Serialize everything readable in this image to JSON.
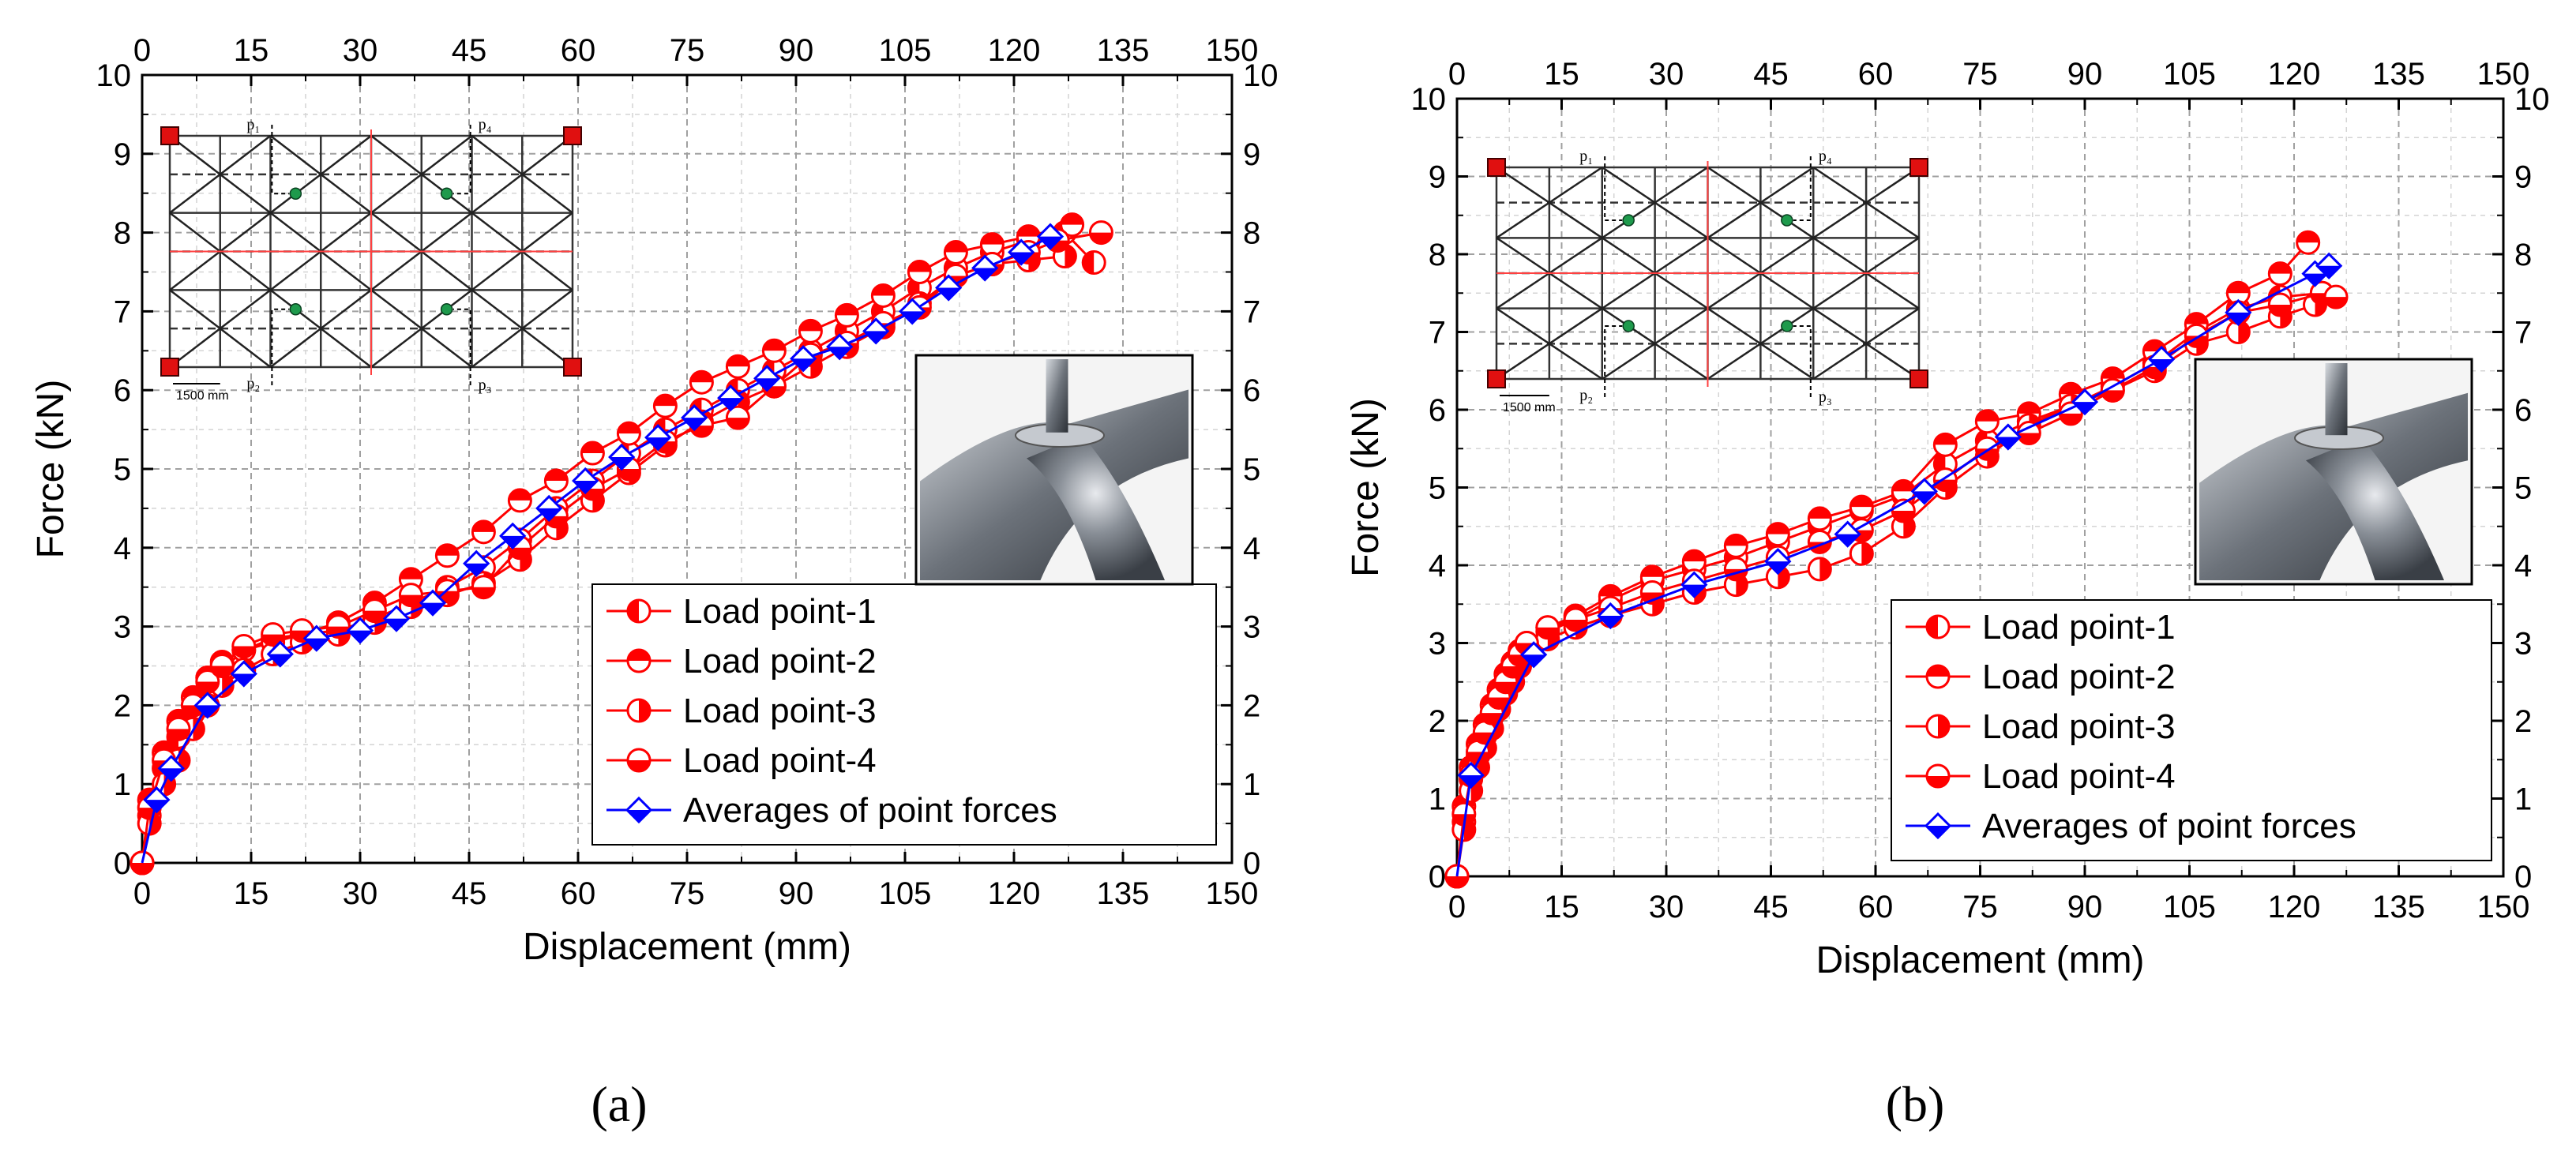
{
  "colors": {
    "series": "#ff0000",
    "average": "#0000ff",
    "grid": "#a0a0a0",
    "inset_node": "#1e9a4c"
  },
  "chart_data": [
    {
      "type": "line",
      "panel_label": "(a)",
      "xlabel": "Displacement (mm)",
      "ylabel": "Force (kN)",
      "xlim": [
        0,
        150
      ],
      "ylim": [
        0,
        10
      ],
      "xticks": [
        "0",
        "15",
        "30",
        "45",
        "60",
        "75",
        "90",
        "105",
        "120",
        "135",
        "150"
      ],
      "yticks": [
        "0",
        "1",
        "2",
        "3",
        "4",
        "5",
        "6",
        "7",
        "8",
        "9",
        "10"
      ],
      "inset_labels": {
        "p1": "p₁",
        "p2": "p₂",
        "p3": "p₃",
        "p4": "p₄",
        "scale": "1500 mm"
      },
      "series": [
        {
          "name": "Load point-1",
          "x": [
            0,
            1,
            3,
            5,
            7,
            9,
            11,
            14,
            18,
            22,
            27,
            32,
            37,
            42,
            47,
            52,
            57,
            62,
            67,
            72,
            77,
            82,
            87,
            92,
            97,
            102,
            107,
            112,
            117,
            122,
            127,
            131
          ],
          "y": [
            0,
            0.6,
            1.2,
            1.6,
            1.9,
            2.2,
            2.45,
            2.7,
            2.85,
            2.9,
            2.95,
            3.1,
            3.3,
            3.5,
            3.75,
            4.1,
            4.5,
            4.85,
            5.2,
            5.5,
            5.75,
            6.0,
            6.25,
            6.5,
            6.75,
            7.0,
            7.3,
            7.55,
            7.75,
            7.9,
            8.0,
            7.62
          ]
        },
        {
          "name": "Load point-2",
          "x": [
            0,
            1,
            3,
            5,
            7,
            9,
            11,
            14,
            18,
            22,
            27,
            32,
            37,
            42,
            47,
            52,
            57,
            62,
            67,
            72,
            77,
            82,
            87,
            92,
            97,
            102,
            107,
            112,
            117,
            122,
            128
          ],
          "y": [
            0,
            0.8,
            1.4,
            1.8,
            2.1,
            2.35,
            2.55,
            2.7,
            2.8,
            2.9,
            3.05,
            3.3,
            3.6,
            3.9,
            4.2,
            4.6,
            4.85,
            5.2,
            5.45,
            5.8,
            6.1,
            6.3,
            6.5,
            6.75,
            6.95,
            7.2,
            7.5,
            7.75,
            7.85,
            7.95,
            8.1
          ]
        },
        {
          "name": "Load point-3",
          "x": [
            0,
            1,
            3,
            5,
            7,
            9,
            11,
            14,
            18,
            22,
            27,
            32,
            37,
            42,
            47,
            52,
            57,
            62,
            67,
            72,
            77,
            82,
            87,
            92,
            97,
            102,
            107,
            112,
            117,
            122,
            127
          ],
          "y": [
            0,
            0.5,
            1.0,
            1.3,
            1.7,
            2.0,
            2.25,
            2.45,
            2.65,
            2.8,
            2.9,
            3.05,
            3.25,
            3.4,
            3.55,
            3.85,
            4.25,
            4.6,
            4.95,
            5.3,
            5.6,
            5.85,
            6.05,
            6.3,
            6.55,
            6.8,
            7.1,
            7.45,
            7.6,
            7.65,
            7.7
          ]
        },
        {
          "name": "Load point-4",
          "x": [
            0,
            1,
            3,
            5,
            7,
            9,
            11,
            14,
            18,
            22,
            27,
            32,
            37,
            42,
            47,
            52,
            57,
            62,
            67,
            72,
            77,
            82,
            87,
            92,
            97,
            102,
            107,
            112,
            117,
            122,
            126,
            132
          ],
          "y": [
            0,
            0.7,
            1.3,
            1.7,
            2.0,
            2.3,
            2.5,
            2.75,
            2.9,
            2.95,
            3.0,
            3.2,
            3.4,
            3.45,
            3.5,
            4.0,
            4.4,
            4.75,
            5.0,
            5.35,
            5.55,
            5.65,
            6.05,
            6.45,
            6.6,
            6.85,
            7.05,
            7.45,
            7.6,
            7.75,
            7.9,
            8.0
          ]
        },
        {
          "name": "Averages of point forces",
          "x": [
            0,
            2,
            4,
            9,
            14,
            19,
            24,
            30,
            35,
            40,
            46,
            51,
            56,
            61,
            66,
            71,
            76,
            81,
            86,
            91,
            96,
            101,
            106,
            111,
            116,
            121,
            125
          ],
          "y": [
            0,
            0.8,
            1.2,
            2.0,
            2.4,
            2.65,
            2.85,
            2.95,
            3.1,
            3.3,
            3.8,
            4.15,
            4.5,
            4.85,
            5.15,
            5.4,
            5.65,
            5.9,
            6.15,
            6.4,
            6.55,
            6.75,
            7.0,
            7.3,
            7.55,
            7.75,
            7.95
          ]
        }
      ]
    },
    {
      "type": "line",
      "panel_label": "(b)",
      "xlabel": "Displacement (mm)",
      "ylabel": "Force (kN)",
      "xlim": [
        0,
        150
      ],
      "ylim": [
        0,
        10
      ],
      "xticks": [
        "0",
        "15",
        "30",
        "45",
        "60",
        "75",
        "90",
        "105",
        "120",
        "135",
        "150"
      ],
      "yticks": [
        "0",
        "1",
        "2",
        "3",
        "4",
        "5",
        "6",
        "7",
        "8",
        "9",
        "10"
      ],
      "inset_labels": {
        "p1": "p₁",
        "p2": "p₂",
        "p3": "p₃",
        "p4": "p₄",
        "scale": "1500 mm"
      },
      "series": [
        {
          "name": "Load point-1",
          "x": [
            0,
            1,
            2,
            3,
            4,
            5,
            6,
            7,
            8,
            9,
            10,
            13,
            17,
            22,
            28,
            34,
            40,
            46,
            52,
            58,
            64,
            70,
            76,
            82,
            88,
            94,
            100,
            106,
            112,
            118,
            124
          ],
          "y": [
            0,
            0.7,
            1.25,
            1.55,
            1.8,
            2.05,
            2.3,
            2.5,
            2.65,
            2.8,
            2.95,
            3.15,
            3.3,
            3.55,
            3.8,
            3.95,
            4.1,
            4.3,
            4.5,
            4.7,
            4.9,
            5.3,
            5.6,
            5.85,
            6.05,
            6.3,
            6.6,
            7.0,
            7.3,
            7.45,
            7.5
          ]
        },
        {
          "name": "Load point-2",
          "x": [
            0,
            1,
            2,
            3,
            4,
            5,
            6,
            7,
            8,
            9,
            10,
            13,
            17,
            22,
            28,
            34,
            40,
            46,
            52,
            58,
            64,
            70,
            76,
            82,
            88,
            94,
            100,
            106,
            112,
            118,
            122
          ],
          "y": [
            0,
            0.9,
            1.4,
            1.7,
            1.95,
            2.2,
            2.4,
            2.6,
            2.75,
            2.9,
            3.0,
            3.2,
            3.35,
            3.6,
            3.85,
            4.05,
            4.25,
            4.4,
            4.6,
            4.75,
            4.95,
            5.55,
            5.85,
            5.95,
            6.2,
            6.4,
            6.75,
            7.1,
            7.5,
            7.75,
            8.15
          ]
        },
        {
          "name": "Load point-3",
          "x": [
            0,
            1,
            2,
            3,
            4,
            5,
            6,
            7,
            8,
            9,
            10,
            13,
            17,
            22,
            28,
            34,
            40,
            46,
            52,
            58,
            64,
            70,
            76,
            82,
            88,
            94,
            100,
            106,
            112,
            118,
            123
          ],
          "y": [
            0,
            0.6,
            1.1,
            1.4,
            1.65,
            1.9,
            2.15,
            2.35,
            2.5,
            2.7,
            2.85,
            3.05,
            3.2,
            3.35,
            3.5,
            3.65,
            3.75,
            3.85,
            3.95,
            4.15,
            4.5,
            5.0,
            5.4,
            5.8,
            6.05,
            6.25,
            6.5,
            6.85,
            7.0,
            7.2,
            7.35
          ]
        },
        {
          "name": "Load point-4",
          "x": [
            0,
            1,
            2,
            3,
            4,
            5,
            6,
            7,
            8,
            9,
            10,
            13,
            17,
            22,
            28,
            34,
            40,
            46,
            52,
            58,
            64,
            70,
            76,
            82,
            88,
            94,
            100,
            106,
            112,
            118,
            124,
            126
          ],
          "y": [
            0,
            0.8,
            1.3,
            1.6,
            1.85,
            2.1,
            2.3,
            2.5,
            2.7,
            2.85,
            3.0,
            3.2,
            3.3,
            3.45,
            3.65,
            3.8,
            3.95,
            4.1,
            4.3,
            4.45,
            4.7,
            5.1,
            5.5,
            5.7,
            5.95,
            6.25,
            6.55,
            6.95,
            7.25,
            7.35,
            7.5,
            7.45
          ]
        },
        {
          "name": "Averages of point forces",
          "x": [
            0,
            2,
            11,
            22,
            34,
            46,
            56,
            67,
            79,
            90,
            101,
            112,
            123,
            125
          ],
          "y": [
            0,
            1.3,
            2.85,
            3.35,
            3.75,
            4.05,
            4.4,
            4.95,
            5.65,
            6.1,
            6.65,
            7.25,
            7.75,
            7.85
          ]
        }
      ]
    }
  ]
}
